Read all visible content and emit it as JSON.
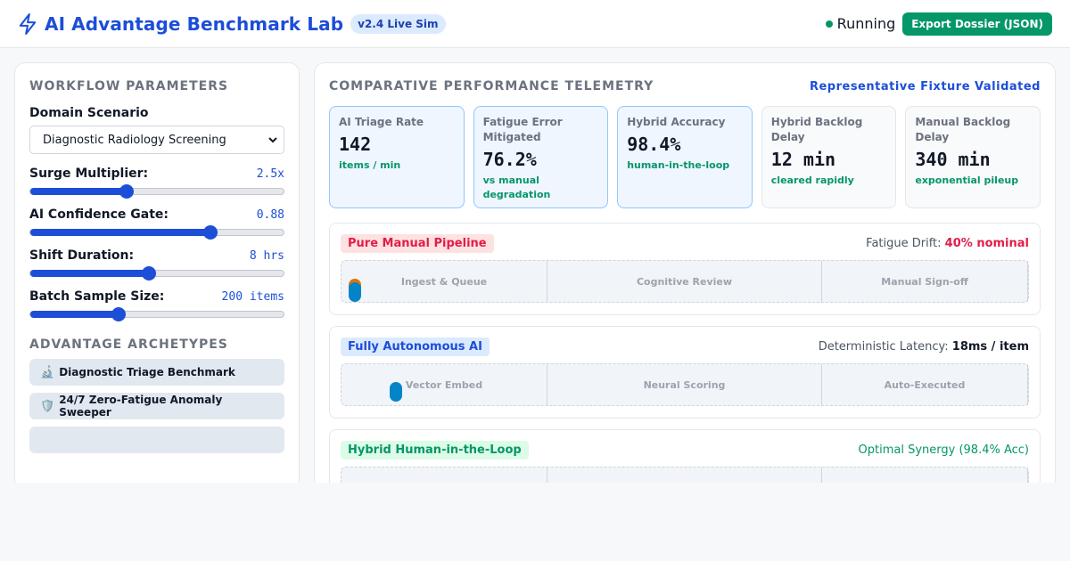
{
  "header": {
    "title": "AI Advantage Benchmark Lab",
    "version": "v2.4 Live Sim",
    "status": "Running",
    "export_label": "Export Dossier (JSON)"
  },
  "params": {
    "section_title": "WORKFLOW PARAMETERS",
    "domain_label": "Domain Scenario",
    "domain_value": "Diagnostic Radiology Screening",
    "sliders": [
      {
        "label": "Surge Multiplier:",
        "value": "2.5x",
        "level": 0.38
      },
      {
        "label": "AI Confidence Gate:",
        "value": "0.88",
        "level": 0.71
      },
      {
        "label": "Shift Duration:",
        "value": "8 hrs",
        "level": 0.47
      },
      {
        "label": "Batch Sample Size:",
        "value": "200 items",
        "level": 0.35
      }
    ]
  },
  "archetypes": {
    "section_title": "ADVANTAGE ARCHETYPES",
    "items": [
      {
        "icon": "🔬",
        "label": "Diagnostic Triage Benchmark"
      },
      {
        "icon": "🛡️",
        "label": "24/7 Zero-Fatigue Anomaly Sweeper"
      }
    ]
  },
  "telemetry": {
    "section_title": "COMPARATIVE PERFORMANCE TELEMETRY",
    "validated": "Representative Fixture Validated",
    "metrics": [
      {
        "label": "AI Triage Rate",
        "value": "142",
        "sub": "items / min"
      },
      {
        "label": "Fatigue Error Mitigated",
        "value": "76.2%",
        "sub": "vs manual degradation"
      },
      {
        "label": "Hybrid Accuracy",
        "value": "98.4%",
        "sub": "human-in-the-loop"
      },
      {
        "label": "Hybrid Backlog Delay",
        "value": "12 min",
        "sub": "cleared rapidly"
      },
      {
        "label": "Manual Backlog Delay",
        "value": "340 min",
        "sub": "exponential pileup"
      }
    ]
  },
  "pipelines": [
    {
      "badge": "Pure Manual Pipeline",
      "meta_label": "Fatigue Drift:",
      "meta_value": "40% nominal",
      "lanes": [
        "Ingest & Queue",
        "Cognitive Review",
        "Manual Sign-off"
      ]
    },
    {
      "badge": "Fully Autonomous AI",
      "meta_label": "Deterministic Latency:",
      "meta_value": "18ms / item",
      "lanes": [
        "Vector Embed",
        "Neural Scoring",
        "Auto-Executed"
      ]
    },
    {
      "badge": "Hybrid Human-in-the-Loop",
      "meta_label": "",
      "meta_value": "Optimal Synergy (98.4% Acc)"
    }
  ],
  "colors": {
    "accent": "#1d4ed8",
    "success": "#059669",
    "danger": "#e11d48"
  }
}
